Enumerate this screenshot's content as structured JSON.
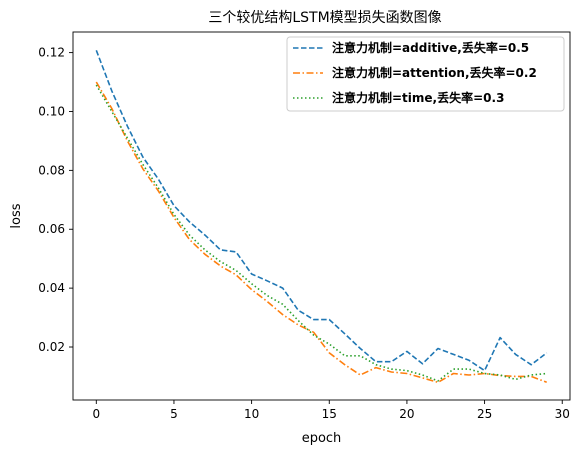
{
  "chart_data": {
    "type": "line",
    "title": "三个较优结构LSTM模型损失函数图像",
    "xlabel": "epoch",
    "ylabel": "loss",
    "xlim": [
      -1.5,
      30.5
    ],
    "ylim": [
      0.002,
      0.127
    ],
    "xticks": [
      0,
      5,
      10,
      15,
      20,
      25,
      30
    ],
    "yticks": [
      0.02,
      0.04,
      0.06,
      0.08,
      0.1,
      0.12
    ],
    "ytick_labels": [
      "0.02",
      "0.04",
      "0.06",
      "0.08",
      "0.10",
      "0.12"
    ],
    "grid": false,
    "legend_position": "top-right",
    "x": [
      0,
      1,
      2,
      3,
      4,
      5,
      6,
      7,
      8,
      9,
      10,
      11,
      12,
      13,
      14,
      15,
      16,
      17,
      18,
      19,
      20,
      21,
      22,
      23,
      24,
      25,
      26,
      27,
      28,
      29
    ],
    "series": [
      {
        "name": "注意力机制=additive,丢失率=0.5",
        "color": "#1f77b4",
        "dash": "dashed",
        "values": [
          0.1208,
          0.107,
          0.095,
          0.0845,
          0.077,
          0.068,
          0.0625,
          0.058,
          0.053,
          0.0523,
          0.0448,
          0.0425,
          0.04,
          0.0325,
          0.0293,
          0.0293,
          0.0245,
          0.0195,
          0.015,
          0.015,
          0.0185,
          0.0143,
          0.0195,
          0.0175,
          0.0155,
          0.012,
          0.0232,
          0.0175,
          0.014,
          0.018
        ]
      },
      {
        "name": "注意力机制=attention,丢失率=0.2",
        "color": "#ff7f0e",
        "dash": "dashdot",
        "values": [
          0.11,
          0.101,
          0.09,
          0.0805,
          0.073,
          0.064,
          0.0565,
          0.0515,
          0.0475,
          0.0445,
          0.0395,
          0.0355,
          0.031,
          0.0275,
          0.025,
          0.018,
          0.014,
          0.0105,
          0.013,
          0.0115,
          0.011,
          0.0095,
          0.008,
          0.011,
          0.0105,
          0.011,
          0.0103,
          0.01,
          0.01,
          0.008
        ]
      },
      {
        "name": "注意力机制=time,丢失率=0.3",
        "color": "#2ca02c",
        "dash": "dotted",
        "values": [
          0.109,
          0.1,
          0.091,
          0.082,
          0.074,
          0.065,
          0.058,
          0.053,
          0.049,
          0.046,
          0.0415,
          0.0375,
          0.0345,
          0.029,
          0.024,
          0.021,
          0.017,
          0.017,
          0.014,
          0.0125,
          0.012,
          0.0105,
          0.0085,
          0.0125,
          0.0125,
          0.011,
          0.0105,
          0.009,
          0.0105,
          0.011
        ]
      }
    ]
  }
}
